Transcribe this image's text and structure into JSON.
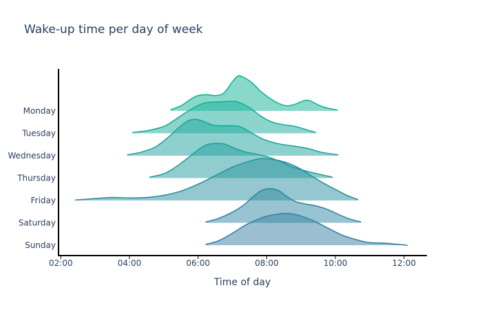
{
  "chart_data": {
    "type": "ridgeline",
    "title": "Wake-up time per day of week",
    "xlabel": "Time of day",
    "ylabel": "",
    "xlim": [
      "01:56",
      "12:40"
    ],
    "x_ticks": [
      "02:00",
      "04:00",
      "06:00",
      "08:00",
      "10:00",
      "12:00"
    ],
    "grid": false,
    "legend": "none",
    "categories": [
      "Monday",
      "Tuesday",
      "Wednesday",
      "Thursday",
      "Friday",
      "Saturday",
      "Sunday"
    ],
    "series": [
      {
        "category": "Monday",
        "color": "#13b497",
        "density": [
          [
            "05:12",
            0.03
          ],
          [
            "05:30",
            0.12
          ],
          [
            "05:48",
            0.28
          ],
          [
            "06:00",
            0.36
          ],
          [
            "06:15",
            0.38
          ],
          [
            "06:30",
            0.36
          ],
          [
            "06:45",
            0.42
          ],
          [
            "07:00",
            0.68
          ],
          [
            "07:10",
            0.82
          ],
          [
            "07:20",
            0.78
          ],
          [
            "07:35",
            0.65
          ],
          [
            "07:50",
            0.45
          ],
          [
            "08:05",
            0.3
          ],
          [
            "08:20",
            0.18
          ],
          [
            "08:35",
            0.12
          ],
          [
            "08:50",
            0.16
          ],
          [
            "09:05",
            0.24
          ],
          [
            "09:15",
            0.24
          ],
          [
            "09:30",
            0.14
          ],
          [
            "09:45",
            0.07
          ],
          [
            "10:04",
            0.02
          ]
        ]
      },
      {
        "category": "Tuesday",
        "color": "#18ab99",
        "density": [
          [
            "04:05",
            0.02
          ],
          [
            "04:30",
            0.06
          ],
          [
            "05:00",
            0.16
          ],
          [
            "05:20",
            0.32
          ],
          [
            "05:40",
            0.5
          ],
          [
            "06:00",
            0.65
          ],
          [
            "06:15",
            0.72
          ],
          [
            "06:30",
            0.73
          ],
          [
            "06:45",
            0.74
          ],
          [
            "07:00",
            0.75
          ],
          [
            "07:10",
            0.73
          ],
          [
            "07:30",
            0.6
          ],
          [
            "07:50",
            0.4
          ],
          [
            "08:10",
            0.26
          ],
          [
            "08:30",
            0.2
          ],
          [
            "08:50",
            0.16
          ],
          [
            "09:10",
            0.08
          ],
          [
            "09:26",
            0.02
          ]
        ]
      },
      {
        "category": "Wednesday",
        "color": "#1ea29b",
        "density": [
          [
            "03:56",
            0.02
          ],
          [
            "04:20",
            0.08
          ],
          [
            "04:45",
            0.2
          ],
          [
            "05:05",
            0.4
          ],
          [
            "05:25",
            0.64
          ],
          [
            "05:40",
            0.8
          ],
          [
            "05:55",
            0.85
          ],
          [
            "06:10",
            0.8
          ],
          [
            "06:25",
            0.72
          ],
          [
            "06:40",
            0.7
          ],
          [
            "07:00",
            0.7
          ],
          [
            "07:15",
            0.67
          ],
          [
            "07:35",
            0.52
          ],
          [
            "07:55",
            0.38
          ],
          [
            "08:20",
            0.28
          ],
          [
            "08:50",
            0.22
          ],
          [
            "09:15",
            0.16
          ],
          [
            "09:35",
            0.08
          ],
          [
            "10:05",
            0.02
          ]
        ]
      },
      {
        "category": "Thursday",
        "color": "#24999d",
        "density": [
          [
            "04:35",
            0.02
          ],
          [
            "05:00",
            0.1
          ],
          [
            "05:20",
            0.25
          ],
          [
            "05:40",
            0.45
          ],
          [
            "06:00",
            0.66
          ],
          [
            "06:15",
            0.78
          ],
          [
            "06:30",
            0.81
          ],
          [
            "06:45",
            0.8
          ],
          [
            "07:00",
            0.72
          ],
          [
            "07:20",
            0.62
          ],
          [
            "07:45",
            0.55
          ],
          [
            "08:05",
            0.48
          ],
          [
            "08:25",
            0.38
          ],
          [
            "08:45",
            0.26
          ],
          [
            "09:10",
            0.16
          ],
          [
            "09:35",
            0.08
          ],
          [
            "09:55",
            0.02
          ]
        ]
      },
      {
        "category": "Friday",
        "color": "#2a909f",
        "density": [
          [
            "02:25",
            0.01
          ],
          [
            "02:55",
            0.04
          ],
          [
            "03:30",
            0.07
          ],
          [
            "04:00",
            0.06
          ],
          [
            "04:30",
            0.07
          ],
          [
            "05:00",
            0.12
          ],
          [
            "05:30",
            0.22
          ],
          [
            "06:00",
            0.38
          ],
          [
            "06:30",
            0.58
          ],
          [
            "07:00",
            0.78
          ],
          [
            "07:30",
            0.92
          ],
          [
            "07:50",
            0.98
          ],
          [
            "08:15",
            0.95
          ],
          [
            "08:40",
            0.86
          ],
          [
            "09:00",
            0.73
          ],
          [
            "09:20",
            0.56
          ],
          [
            "09:40",
            0.4
          ],
          [
            "10:00",
            0.26
          ],
          [
            "10:20",
            0.12
          ],
          [
            "10:40",
            0.02
          ]
        ]
      },
      {
        "category": "Saturday",
        "color": "#3187a1",
        "density": [
          [
            "06:13",
            0.02
          ],
          [
            "06:35",
            0.1
          ],
          [
            "07:00",
            0.25
          ],
          [
            "07:20",
            0.42
          ],
          [
            "07:35",
            0.6
          ],
          [
            "07:50",
            0.75
          ],
          [
            "08:05",
            0.8
          ],
          [
            "08:20",
            0.76
          ],
          [
            "08:35",
            0.62
          ],
          [
            "08:50",
            0.5
          ],
          [
            "09:05",
            0.45
          ],
          [
            "09:25",
            0.4
          ],
          [
            "09:45",
            0.32
          ],
          [
            "10:05",
            0.2
          ],
          [
            "10:25",
            0.09
          ],
          [
            "10:45",
            0.02
          ]
        ]
      },
      {
        "category": "Sunday",
        "color": "#377ea3",
        "density": [
          [
            "06:13",
            0.02
          ],
          [
            "06:35",
            0.1
          ],
          [
            "07:00",
            0.28
          ],
          [
            "07:20",
            0.45
          ],
          [
            "07:40",
            0.58
          ],
          [
            "08:00",
            0.68
          ],
          [
            "08:20",
            0.73
          ],
          [
            "08:35",
            0.74
          ],
          [
            "08:50",
            0.72
          ],
          [
            "09:05",
            0.66
          ],
          [
            "09:25",
            0.55
          ],
          [
            "09:50",
            0.38
          ],
          [
            "10:15",
            0.22
          ],
          [
            "10:40",
            0.12
          ],
          [
            "11:00",
            0.06
          ],
          [
            "11:25",
            0.05
          ],
          [
            "11:50",
            0.02
          ],
          [
            "12:06",
            0.0
          ]
        ]
      }
    ]
  }
}
